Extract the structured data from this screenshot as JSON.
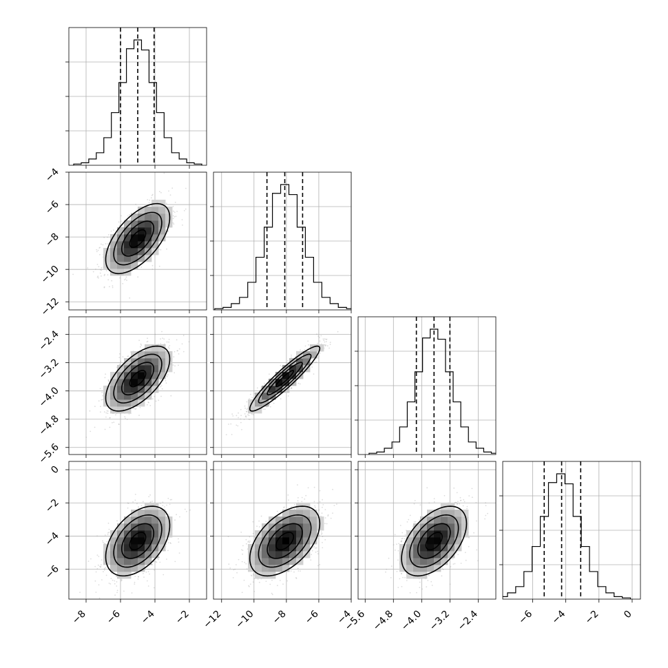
{
  "chart_data": {
    "type": "corner",
    "title": "",
    "parameters": [
      {
        "label": "",
        "mean": -5.0,
        "std": 0.93,
        "quantiles": [
          -6.0,
          -5.0,
          -4.05
        ],
        "range": [
          -9.0,
          -1.0
        ],
        "ticks": [
          -8,
          -6,
          -4,
          -2
        ],
        "tick_labels": [
          "−8",
          "−6",
          "−4",
          "−2"
        ],
        "hist_counts": [
          1,
          2,
          5,
          10,
          22,
          42,
          66,
          93,
          100,
          92,
          66,
          42,
          22,
          10,
          5,
          2,
          1
        ]
      },
      {
        "label": "",
        "mean": -8.1,
        "std": 1.08,
        "quantiles": [
          -9.2,
          -8.1,
          -7.0
        ],
        "range": [
          -12.5,
          -4.0
        ],
        "ticks": [
          -12,
          -10,
          -8,
          -6,
          -4
        ],
        "tick_labels": [
          "−12",
          "−10",
          "−8",
          "−6",
          "−4"
        ],
        "hist_counts": [
          1,
          2,
          5,
          10,
          22,
          42,
          66,
          93,
          100,
          92,
          66,
          42,
          22,
          10,
          5,
          2,
          1
        ]
      },
      {
        "label": "",
        "mean": -3.65,
        "std": 0.46,
        "quantiles": [
          -4.15,
          -3.65,
          -3.2
        ],
        "range": [
          -5.8,
          -1.9
        ],
        "ticks": [
          -5.6,
          -4.8,
          -4.0,
          -3.2,
          -2.4
        ],
        "tick_labels": [
          "−5.6",
          "−4.8",
          "−4.0",
          "−3.2",
          "−2.4"
        ],
        "hist_counts": [
          1,
          2,
          5,
          10,
          22,
          42,
          66,
          93,
          100,
          92,
          66,
          42,
          22,
          10,
          5,
          2,
          1
        ]
      },
      {
        "label": "",
        "mean": -4.3,
        "std": 1.05,
        "quantiles": [
          -5.3,
          -4.25,
          -3.1
        ],
        "range": [
          -7.8,
          0.5
        ],
        "ticks": [
          -6,
          -4,
          -2,
          0
        ],
        "tick_labels": [
          "−6",
          "−4",
          "−2",
          "0"
        ],
        "hist_counts": [
          1,
          2,
          5,
          10,
          22,
          42,
          66,
          93,
          100,
          92,
          66,
          42,
          22,
          10,
          5,
          2,
          1
        ]
      }
    ],
    "correlations": [
      [
        1.0,
        0.6,
        0.6,
        0.45
      ],
      [
        0.6,
        1.0,
        0.93,
        0.5
      ],
      [
        0.6,
        0.93,
        1.0,
        0.5
      ],
      [
        0.45,
        0.5,
        0.5,
        1.0
      ]
    ],
    "contour_levels_sigma": [
      0.5,
      1.0,
      1.5,
      2.0
    ],
    "grid": true
  }
}
